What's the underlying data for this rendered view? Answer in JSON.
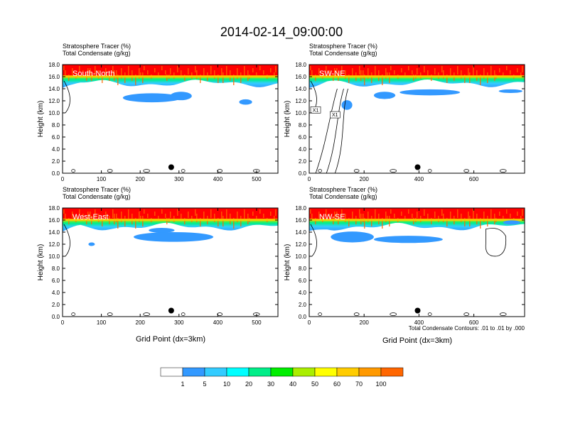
{
  "title": "2014-02-14_09:00:00",
  "field_label": "Stratosphere Tracer",
  "field_unit": "(%)",
  "contour_label": "Total Condensate",
  "contour_unit": "(g/kg)",
  "xlabel": "Grid Point (dx=3km)",
  "ylabel": "Height (km)",
  "contour_note": "Total Condensate Contours: .01 to .01 by .000",
  "colorbar": {
    "labels": [
      "1",
      "5",
      "10",
      "20",
      "30",
      "40",
      "50",
      "60",
      "70",
      "100"
    ],
    "colors": [
      "#ffffff",
      "#3399ff",
      "#33ccff",
      "#00ffff",
      "#00ee88",
      "#00ee00",
      "#aaee00",
      "#ffff00",
      "#ffcc00",
      "#ff9900",
      "#ff6600",
      "#ff0000"
    ]
  },
  "chart_data": [
    {
      "type": "heatmap",
      "name": "South-North",
      "xlim": [
        0,
        555
      ],
      "ylim": [
        0,
        18
      ],
      "xticks": [
        0,
        100,
        200,
        300,
        400,
        500
      ],
      "yticks": [
        0,
        2,
        4,
        6,
        8,
        10,
        12,
        14,
        16,
        18
      ],
      "marker": {
        "x": 280,
        "y": 1.0
      }
    },
    {
      "type": "heatmap",
      "name": "SW-NE",
      "xlim": [
        0,
        785
      ],
      "ylim": [
        0,
        18
      ],
      "xticks": [
        0,
        200,
        400,
        600
      ],
      "yticks": [
        0,
        2,
        4,
        6,
        8,
        10,
        12,
        14,
        16,
        18
      ],
      "marker": {
        "x": 395,
        "y": 1.0
      },
      "contour_labels": [
        "X1",
        "X1"
      ]
    },
    {
      "type": "heatmap",
      "name": "West-East",
      "xlim": [
        0,
        555
      ],
      "ylim": [
        0,
        18
      ],
      "xticks": [
        0,
        100,
        200,
        300,
        400,
        500
      ],
      "yticks": [
        0,
        2,
        4,
        6,
        8,
        10,
        12,
        14,
        16,
        18
      ],
      "marker": {
        "x": 280,
        "y": 1.0
      }
    },
    {
      "type": "heatmap",
      "name": "NW-SE",
      "xlim": [
        0,
        785
      ],
      "ylim": [
        0,
        18
      ],
      "xticks": [
        0,
        200,
        400,
        600
      ],
      "yticks": [
        0,
        2,
        4,
        6,
        8,
        10,
        12,
        14,
        16,
        18
      ],
      "marker": {
        "x": 395,
        "y": 1.0
      }
    }
  ]
}
